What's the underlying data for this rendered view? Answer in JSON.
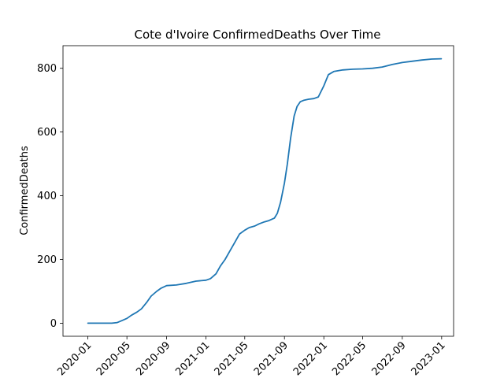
{
  "chart_data": {
    "type": "line",
    "title": "Cote d'Ivoire  ConfirmedDeaths Over Time",
    "xlabel": "",
    "ylabel": "ConfirmedDeaths",
    "x_ticks": [
      "2020-01",
      "2020-05",
      "2020-09",
      "2021-01",
      "2021-05",
      "2021-09",
      "2022-01",
      "2022-05",
      "2022-09",
      "2023-01"
    ],
    "y_ticks": [
      0,
      200,
      400,
      600,
      800
    ],
    "xlim": [
      "2019-10-16",
      "2023-02-07"
    ],
    "ylim": [
      -41,
      871
    ],
    "grid": false,
    "line_color": "#1f77b4",
    "series": [
      {
        "x": [
          "2020-01-01",
          "2020-03-15",
          "2020-04-01",
          "2020-04-15",
          "2020-05-01",
          "2020-05-15",
          "2020-06-01",
          "2020-06-15",
          "2020-07-01",
          "2020-07-15",
          "2020-08-01",
          "2020-08-15",
          "2020-09-01",
          "2020-10-01",
          "2020-11-01",
          "2020-12-01",
          "2021-01-01",
          "2021-01-15",
          "2021-02-01",
          "2021-02-15",
          "2021-03-01",
          "2021-03-15",
          "2021-04-01",
          "2021-04-15",
          "2021-05-01",
          "2021-05-15",
          "2021-06-01",
          "2021-06-15",
          "2021-07-01",
          "2021-07-15",
          "2021-08-01",
          "2021-08-10",
          "2021-08-20",
          "2021-09-01",
          "2021-09-10",
          "2021-09-20",
          "2021-10-01",
          "2021-10-10",
          "2021-10-20",
          "2021-11-01",
          "2021-11-15",
          "2021-12-01",
          "2021-12-15",
          "2022-01-01",
          "2022-01-15",
          "2022-02-01",
          "2022-03-01",
          "2022-04-01",
          "2022-05-01",
          "2022-06-01",
          "2022-07-01",
          "2022-08-01",
          "2022-09-01",
          "2022-10-01",
          "2022-11-01",
          "2022-12-01",
          "2022-12-31"
        ],
        "values": [
          0,
          0,
          2,
          8,
          15,
          25,
          35,
          45,
          65,
          85,
          100,
          110,
          118,
          120,
          125,
          132,
          135,
          140,
          155,
          180,
          200,
          225,
          255,
          280,
          292,
          300,
          305,
          312,
          318,
          322,
          330,
          345,
          380,
          440,
          500,
          580,
          650,
          680,
          695,
          700,
          703,
          705,
          710,
          745,
          780,
          790,
          795,
          797,
          798,
          800,
          804,
          812,
          818,
          822,
          826,
          829,
          830
        ]
      }
    ]
  }
}
